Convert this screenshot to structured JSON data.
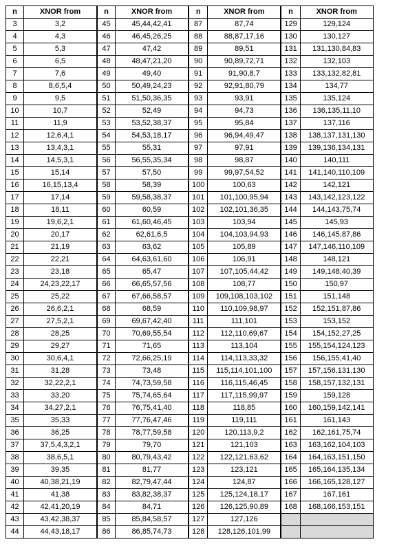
{
  "table": {
    "header_n": "n",
    "header_x": "XNOR from",
    "col_n_width": 26,
    "col_x_width": 106,
    "font_size": 11,
    "border_color": "#000000",
    "background_color": "#ffffff",
    "shaded_color": "#d9d9d9",
    "columns": [
      [
        {
          "n": "3",
          "x": "3,2"
        },
        {
          "n": "4",
          "x": "4,3"
        },
        {
          "n": "5",
          "x": "5,3"
        },
        {
          "n": "6",
          "x": "6,5"
        },
        {
          "n": "7",
          "x": "7,6"
        },
        {
          "n": "8",
          "x": "8,6,5,4"
        },
        {
          "n": "9",
          "x": "9,5"
        },
        {
          "n": "10",
          "x": "10,7"
        },
        {
          "n": "11",
          "x": "11,9"
        },
        {
          "n": "12",
          "x": "12,6,4,1"
        },
        {
          "n": "13",
          "x": "13,4,3,1"
        },
        {
          "n": "14",
          "x": "14,5,3,1"
        },
        {
          "n": "15",
          "x": "15,14"
        },
        {
          "n": "16",
          "x": "16,15,13,4"
        },
        {
          "n": "17",
          "x": "17,14"
        },
        {
          "n": "18",
          "x": "18,11"
        },
        {
          "n": "19",
          "x": "19,6,2,1"
        },
        {
          "n": "20",
          "x": "20,17"
        },
        {
          "n": "21",
          "x": "21,19"
        },
        {
          "n": "22",
          "x": "22,21"
        },
        {
          "n": "23",
          "x": "23,18"
        },
        {
          "n": "24",
          "x": "24,23,22,17"
        },
        {
          "n": "25",
          "x": "25,22"
        },
        {
          "n": "26",
          "x": "26,6,2,1"
        },
        {
          "n": "27",
          "x": "27,5,2,1"
        },
        {
          "n": "28",
          "x": "28,25"
        },
        {
          "n": "29",
          "x": "29,27"
        },
        {
          "n": "30",
          "x": "30,6,4,1"
        },
        {
          "n": "31",
          "x": "31,28"
        },
        {
          "n": "32",
          "x": "32,22,2,1"
        },
        {
          "n": "33",
          "x": "33,20"
        },
        {
          "n": "34",
          "x": "34,27,2,1"
        },
        {
          "n": "35",
          "x": "35,33"
        },
        {
          "n": "36",
          "x": "36,25"
        },
        {
          "n": "37",
          "x": "37,5,4,3,2,1"
        },
        {
          "n": "38",
          "x": "38,6,5,1"
        },
        {
          "n": "39",
          "x": "39,35"
        },
        {
          "n": "40",
          "x": "40,38,21,19"
        },
        {
          "n": "41",
          "x": "41,38"
        },
        {
          "n": "42",
          "x": "42,41,20,19"
        },
        {
          "n": "43",
          "x": "43,42,38,37"
        },
        {
          "n": "44",
          "x": "44,43,18,17"
        }
      ],
      [
        {
          "n": "45",
          "x": "45,44,42,41"
        },
        {
          "n": "46",
          "x": "46,45,26,25"
        },
        {
          "n": "47",
          "x": "47,42"
        },
        {
          "n": "48",
          "x": "48,47,21,20"
        },
        {
          "n": "49",
          "x": "49,40"
        },
        {
          "n": "50",
          "x": "50,49,24,23"
        },
        {
          "n": "51",
          "x": "51,50,36,35"
        },
        {
          "n": "52",
          "x": "52,49"
        },
        {
          "n": "53",
          "x": "53,52,38,37"
        },
        {
          "n": "54",
          "x": "54,53,18,17"
        },
        {
          "n": "55",
          "x": "55,31"
        },
        {
          "n": "56",
          "x": "56,55,35,34"
        },
        {
          "n": "57",
          "x": "57,50"
        },
        {
          "n": "58",
          "x": "58,39"
        },
        {
          "n": "59",
          "x": "59,58,38,37"
        },
        {
          "n": "60",
          "x": "60,59"
        },
        {
          "n": "61",
          "x": "61,60,46,45"
        },
        {
          "n": "62",
          "x": "62,61,6,5"
        },
        {
          "n": "63",
          "x": "63,62"
        },
        {
          "n": "64",
          "x": "64,63,61,60"
        },
        {
          "n": "65",
          "x": "65,47"
        },
        {
          "n": "66",
          "x": "66,65,57,56"
        },
        {
          "n": "67",
          "x": "67,66,58,57"
        },
        {
          "n": "68",
          "x": "68,59"
        },
        {
          "n": "69",
          "x": "69,67,42,40"
        },
        {
          "n": "70",
          "x": "70,69,55,54"
        },
        {
          "n": "71",
          "x": "71,65"
        },
        {
          "n": "72",
          "x": "72,66,25,19"
        },
        {
          "n": "73",
          "x": "73,48"
        },
        {
          "n": "74",
          "x": "74,73,59,58"
        },
        {
          "n": "75",
          "x": "75,74,65,64"
        },
        {
          "n": "76",
          "x": "76,75,41,40"
        },
        {
          "n": "77",
          "x": "77,76,47,46"
        },
        {
          "n": "78",
          "x": "78,77,59,58"
        },
        {
          "n": "79",
          "x": "79,70"
        },
        {
          "n": "80",
          "x": "80,79,43,42"
        },
        {
          "n": "81",
          "x": "81,77"
        },
        {
          "n": "82",
          "x": "82,79,47,44"
        },
        {
          "n": "83",
          "x": "83,82,38,37"
        },
        {
          "n": "84",
          "x": "84,71"
        },
        {
          "n": "85",
          "x": "85,84,58,57"
        },
        {
          "n": "86",
          "x": "86,85,74,73"
        }
      ],
      [
        {
          "n": "87",
          "x": "87,74"
        },
        {
          "n": "88",
          "x": "88,87,17,16"
        },
        {
          "n": "89",
          "x": "89,51"
        },
        {
          "n": "90",
          "x": "90,89,72,71"
        },
        {
          "n": "91",
          "x": "91,90,8,7"
        },
        {
          "n": "92",
          "x": "92,91,80,79"
        },
        {
          "n": "93",
          "x": "93,91"
        },
        {
          "n": "94",
          "x": "94,73"
        },
        {
          "n": "95",
          "x": "95,84"
        },
        {
          "n": "96",
          "x": "96,94,49,47"
        },
        {
          "n": "97",
          "x": "97,91"
        },
        {
          "n": "98",
          "x": "98,87"
        },
        {
          "n": "99",
          "x": "99,97,54,52"
        },
        {
          "n": "100",
          "x": "100,63"
        },
        {
          "n": "101",
          "x": "101,100,95,94"
        },
        {
          "n": "102",
          "x": "102,101,36,35"
        },
        {
          "n": "103",
          "x": "103,94"
        },
        {
          "n": "104",
          "x": "104,103,94,93"
        },
        {
          "n": "105",
          "x": "105,89"
        },
        {
          "n": "106",
          "x": "106,91"
        },
        {
          "n": "107",
          "x": "107,105,44,42"
        },
        {
          "n": "108",
          "x": "108,77"
        },
        {
          "n": "109",
          "x": "109,108,103,102"
        },
        {
          "n": "110",
          "x": "110,109,98,97"
        },
        {
          "n": "111",
          "x": "111,101"
        },
        {
          "n": "112",
          "x": "112,110,69,67"
        },
        {
          "n": "113",
          "x": "113,104"
        },
        {
          "n": "114",
          "x": "114,113,33,32"
        },
        {
          "n": "115",
          "x": "115,114,101,100"
        },
        {
          "n": "116",
          "x": "116,115,46,45"
        },
        {
          "n": "117",
          "x": "117,115,99,97"
        },
        {
          "n": "118",
          "x": "118,85"
        },
        {
          "n": "119",
          "x": "119,111"
        },
        {
          "n": "120",
          "x": "120,113,9,2"
        },
        {
          "n": "121",
          "x": "121,103"
        },
        {
          "n": "122",
          "x": "122,121,63,62"
        },
        {
          "n": "123",
          "x": "123,121"
        },
        {
          "n": "124",
          "x": "124,87"
        },
        {
          "n": "125",
          "x": "125,124,18,17"
        },
        {
          "n": "126",
          "x": "126,125,90,89"
        },
        {
          "n": "127",
          "x": "127,126"
        },
        {
          "n": "128",
          "x": "128,126,101,99"
        }
      ],
      [
        {
          "n": "129",
          "x": "129,124"
        },
        {
          "n": "130",
          "x": "130,127"
        },
        {
          "n": "131",
          "x": "131,130,84,83"
        },
        {
          "n": "132",
          "x": "132,103"
        },
        {
          "n": "133",
          "x": "133,132,82,81"
        },
        {
          "n": "134",
          "x": "134,77"
        },
        {
          "n": "135",
          "x": "135,124"
        },
        {
          "n": "136",
          "x": "136,135,11,10"
        },
        {
          "n": "137",
          "x": "137,116"
        },
        {
          "n": "138",
          "x": "138,137,131,130"
        },
        {
          "n": "139",
          "x": "139,136,134,131"
        },
        {
          "n": "140",
          "x": "140,111"
        },
        {
          "n": "141",
          "x": "141,140,110,109"
        },
        {
          "n": "142",
          "x": "142,121"
        },
        {
          "n": "143",
          "x": "143,142,123,122"
        },
        {
          "n": "144",
          "x": "144,143,75,74"
        },
        {
          "n": "145",
          "x": "145,93"
        },
        {
          "n": "146",
          "x": "146,145,87,86"
        },
        {
          "n": "147",
          "x": "147,146,110,109"
        },
        {
          "n": "148",
          "x": "148,121"
        },
        {
          "n": "149",
          "x": "149,148,40,39"
        },
        {
          "n": "150",
          "x": "150,97"
        },
        {
          "n": "151",
          "x": "151,148"
        },
        {
          "n": "152",
          "x": "152,151,87,86"
        },
        {
          "n": "153",
          "x": "153,152"
        },
        {
          "n": "154",
          "x": "154,152,27,25"
        },
        {
          "n": "155",
          "x": "155,154,124,123"
        },
        {
          "n": "156",
          "x": "156,155,41,40"
        },
        {
          "n": "157",
          "x": "157,156,131,130"
        },
        {
          "n": "158",
          "x": "158,157,132,131"
        },
        {
          "n": "159",
          "x": "159,128"
        },
        {
          "n": "160",
          "x": "160,159,142,141"
        },
        {
          "n": "161",
          "x": "161,143"
        },
        {
          "n": "162",
          "x": "162,161,75,74"
        },
        {
          "n": "163",
          "x": "163,162,104,103"
        },
        {
          "n": "164",
          "x": "164,163,151,150"
        },
        {
          "n": "165",
          "x": "165,164,135,134"
        },
        {
          "n": "166",
          "x": "166,165,128,127"
        },
        {
          "n": "167",
          "x": "167,161"
        },
        {
          "n": "168",
          "x": "168,166,153,151"
        },
        {
          "n": "",
          "x": "",
          "shaded": true
        },
        {
          "n": "",
          "x": "",
          "shaded": true
        }
      ]
    ]
  }
}
